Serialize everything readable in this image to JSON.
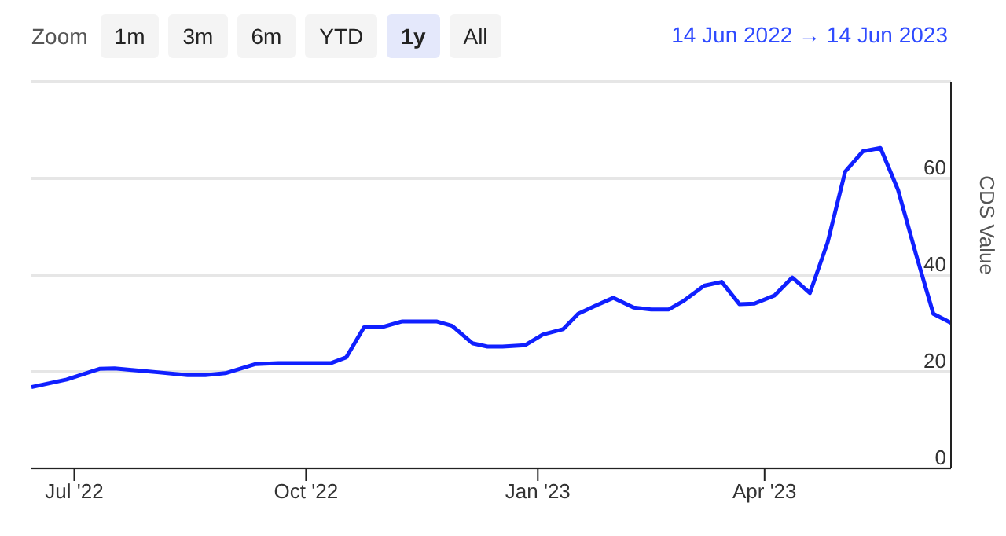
{
  "chart_data": {
    "type": "line",
    "ylabel": "CDS Value",
    "annotations": [
      "Zoom",
      "1m",
      "3m",
      "6m",
      "YTD",
      "1y",
      "All",
      "14 Jun 2022 → 14 Jun 2023"
    ],
    "x": [
      "2022-06-14",
      "2022-06-28",
      "2022-07-11",
      "2022-07-17",
      "2022-07-23",
      "2022-08-03",
      "2022-08-15",
      "2022-08-22",
      "2022-08-30",
      "2022-09-11",
      "2022-09-20",
      "2022-10-11",
      "2022-10-17",
      "2022-10-24",
      "2022-10-31",
      "2022-11-08",
      "2022-11-22",
      "2022-11-28",
      "2022-12-06",
      "2022-12-12",
      "2022-12-18",
      "2022-12-27",
      "2023-01-03",
      "2023-01-11",
      "2023-01-17",
      "2023-01-24",
      "2023-01-31",
      "2023-02-08",
      "2023-02-15",
      "2023-02-22",
      "2023-02-28",
      "2023-03-08",
      "2023-03-15",
      "2023-03-22",
      "2023-03-28",
      "2023-04-05",
      "2023-04-12",
      "2023-04-19",
      "2023-04-26",
      "2023-05-03",
      "2023-05-10",
      "2023-05-17",
      "2023-05-24",
      "2023-05-31",
      "2023-06-07",
      "2023-06-14"
    ],
    "series": [
      {
        "color": "#1020ff",
        "values": [
          16.8,
          18.4,
          20.6,
          20.7,
          20.4,
          19.9,
          19.3,
          19.3,
          19.7,
          21.6,
          21.8,
          21.8,
          23.0,
          29.2,
          29.2,
          30.4,
          30.4,
          29.5,
          25.9,
          25.2,
          25.2,
          25.5,
          27.7,
          28.8,
          32.0,
          33.7,
          35.3,
          33.3,
          32.9,
          32.9,
          34.7,
          37.8,
          38.6,
          34.0,
          34.1,
          35.8,
          39.5,
          36.3,
          46.7,
          61.4,
          65.6,
          66.3,
          57.6,
          44.5,
          32.0,
          30.1
        ]
      }
    ],
    "xlim": [
      "2022-06-14",
      "2023-06-14"
    ],
    "xticks": [
      {
        "value": "2022-07-01",
        "label": "Jul '22"
      },
      {
        "value": "2022-10-01",
        "label": "Oct '22"
      },
      {
        "value": "2023-01-01",
        "label": "Jan '23"
      },
      {
        "value": "2023-04-01",
        "label": "Apr '23"
      }
    ],
    "ylim": [
      0,
      80
    ],
    "yticks": [
      0,
      20,
      40,
      60,
      {
        "value": 80,
        "label": null
      }
    ],
    "grid": "y",
    "legend": false,
    "marker": "none",
    "line_style": "solid"
  }
}
